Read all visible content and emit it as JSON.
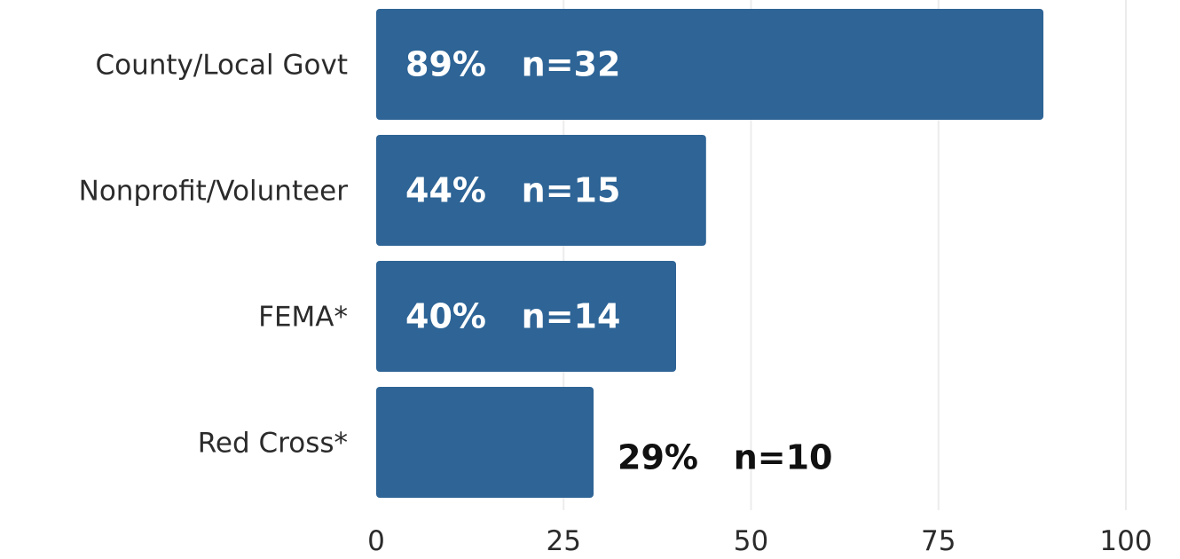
{
  "chart_data": {
    "type": "bar",
    "orientation": "horizontal",
    "categories": [
      "County/Local Govt",
      "Nonprofit/Volunteer",
      "FEMA*",
      "Red Cross*"
    ],
    "values": [
      89,
      44,
      40,
      29
    ],
    "data_labels": [
      "89%   n=32",
      "44%   n=15",
      "40%   n=14",
      "29%   n=10"
    ],
    "xlim": [
      0,
      100
    ],
    "x_ticks": [
      0,
      25,
      50,
      75,
      100
    ],
    "grid": true,
    "title": "",
    "xlabel": "",
    "ylabel": "",
    "colors": {
      "bar": "#2e6496",
      "label_inside": "#ffffff",
      "label_outside": "#111111"
    }
  }
}
